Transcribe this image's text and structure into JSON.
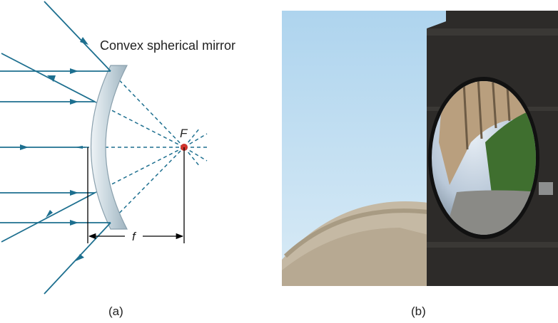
{
  "diagram": {
    "title": "Convex spherical mirror",
    "focal_point_label": "F",
    "focal_length_label": "f",
    "caption": "(a)",
    "colors": {
      "ray": "#1d6f8f",
      "mirror_fill": "#c6d5dd",
      "mirror_edge": "#8aa0ad",
      "focal_point": "#d0342c",
      "text": "#222222"
    }
  },
  "photo": {
    "caption": "(b)",
    "description_icon": "convex-mirror-photo"
  }
}
